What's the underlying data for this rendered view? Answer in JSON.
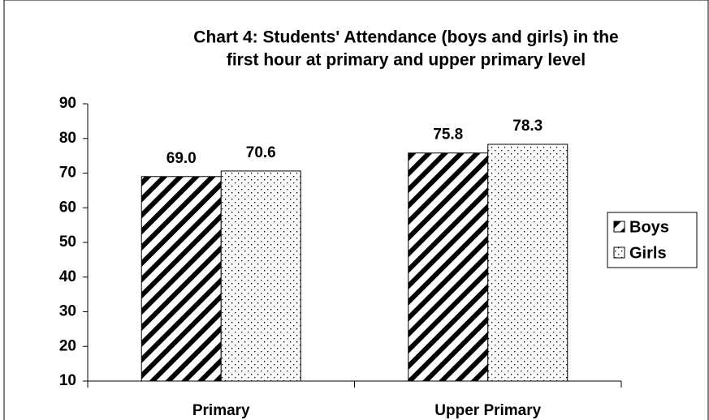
{
  "chart_data": {
    "type": "bar",
    "title": [
      "Chart 4: Students' Attendance (boys and girls) in the",
      "first hour at primary and upper primary level"
    ],
    "categories": [
      "Primary",
      "Upper Primary"
    ],
    "series": [
      {
        "name": "Boys",
        "color": "#000000",
        "pattern": "diagonal",
        "values": [
          69.0,
          75.8
        ],
        "value_labels": [
          "69.0",
          "75.8"
        ]
      },
      {
        "name": "Girls",
        "color": "#000000",
        "pattern": "dots",
        "values": [
          70.6,
          78.3
        ],
        "value_labels": [
          "70.6",
          "78.3"
        ]
      }
    ],
    "ylim": [
      10,
      90
    ],
    "yticks": [
      10,
      20,
      30,
      40,
      50,
      60,
      70,
      80,
      90
    ],
    "grid": false,
    "legend": "right"
  }
}
